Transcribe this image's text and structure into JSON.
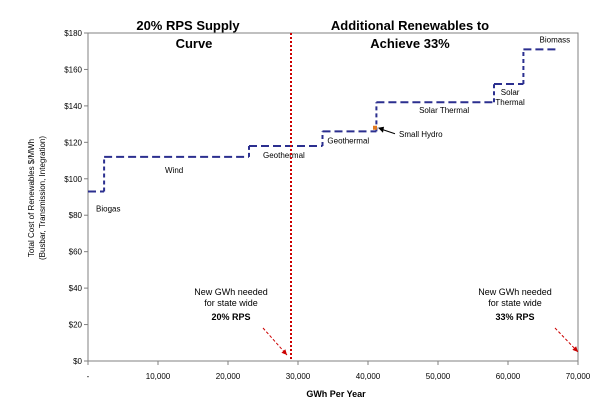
{
  "chart_data": {
    "type": "line",
    "xlabel": "GWh Per Year",
    "ylabel_line1": "Total Cost of Renewables $/MWh",
    "ylabel_line2": "(Busbar, Transmission, Integration)",
    "xlim": [
      0,
      70000
    ],
    "ylim": [
      0,
      180
    ],
    "x_ticks": [
      {
        "v": 0,
        "label": "-"
      },
      {
        "v": 10000,
        "label": "10,000"
      },
      {
        "v": 20000,
        "label": "20,000"
      },
      {
        "v": 30000,
        "label": "30,000"
      },
      {
        "v": 40000,
        "label": "40,000"
      },
      {
        "v": 50000,
        "label": "50,000"
      },
      {
        "v": 60000,
        "label": "60,000"
      },
      {
        "v": 70000,
        "label": "70,000"
      }
    ],
    "y_ticks": [
      {
        "v": 0,
        "label": "$0"
      },
      {
        "v": 20,
        "label": "$20"
      },
      {
        "v": 40,
        "label": "$40"
      },
      {
        "v": 60,
        "label": "$60"
      },
      {
        "v": 80,
        "label": "$80"
      },
      {
        "v": 100,
        "label": "$100"
      },
      {
        "v": 120,
        "label": "$120"
      },
      {
        "v": 140,
        "label": "$140"
      },
      {
        "v": 160,
        "label": "$160"
      },
      {
        "v": 180,
        "label": "$180"
      }
    ],
    "segments": [
      {
        "label": "Biogas",
        "x0": 0,
        "x1": 2300,
        "y": 93
      },
      {
        "label": "Wind",
        "x0": 2300,
        "x1": 23000,
        "y": 112
      },
      {
        "label": "Geothermal",
        "x0": 23000,
        "x1": 33500,
        "y": 118
      },
      {
        "label": "Geothermal",
        "x0": 33500,
        "x1": 41200,
        "y": 126
      },
      {
        "label": "Solar Thermal",
        "x0": 41200,
        "x1": 58000,
        "y": 142
      },
      {
        "label": "Solar Thermal",
        "x0": 58000,
        "x1": 62200,
        "y": 152
      },
      {
        "label": "Biomass",
        "x0": 62200,
        "x1": 67000,
        "y": 171
      }
    ],
    "marker": {
      "label": "Small Hydro",
      "x": 41000,
      "y": 128
    },
    "rps_line_x": 29000,
    "headers": {
      "left_line1": "20% RPS Supply",
      "left_line2": "Curve",
      "right_line1": "Additional Renewables to",
      "right_line2": "Achieve 33%"
    },
    "annotations": {
      "left_line1": "New GWh needed",
      "left_line2": "for state wide",
      "left_line3": "20% RPS",
      "right_line1": "New GWh needed",
      "right_line2": "for state wide",
      "right_line3": "33% RPS"
    },
    "colors": {
      "curve": "#2b2f8f",
      "rps_line": "#cc0000",
      "arrow": "#cc0000",
      "marker": "#e07a20"
    }
  }
}
